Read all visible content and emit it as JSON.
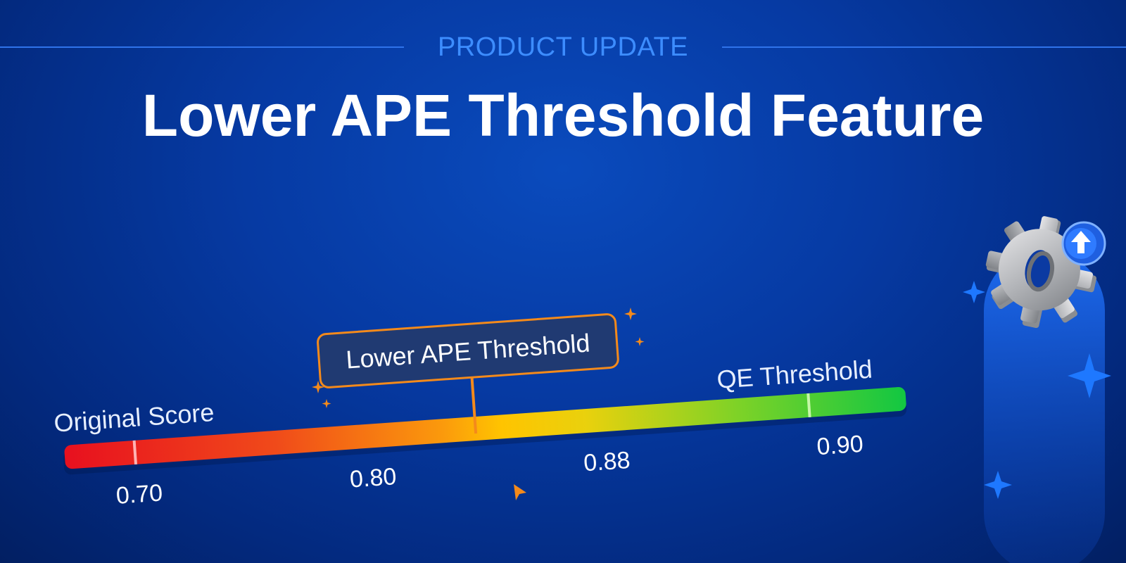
{
  "header": {
    "eyebrow": "PRODUCT UPDATE",
    "title": "Lower APE Threshold Feature"
  },
  "scale": {
    "left_label": "Original Score",
    "right_label": "QE Threshold",
    "callout": "Lower APE Threshold",
    "ticks": [
      "0.70",
      "0.80",
      "0.88",
      "0.90"
    ]
  },
  "icons": [
    "gear-icon",
    "upload-badge-icon",
    "sparkle-icon",
    "cursor-arrow-icon"
  ],
  "colors": {
    "accent_blue": "#3d8dff",
    "callout_orange": "#f48a1b",
    "gradient_red": "#e8101f",
    "gradient_yellow": "#ffc400",
    "gradient_green": "#12c742"
  }
}
